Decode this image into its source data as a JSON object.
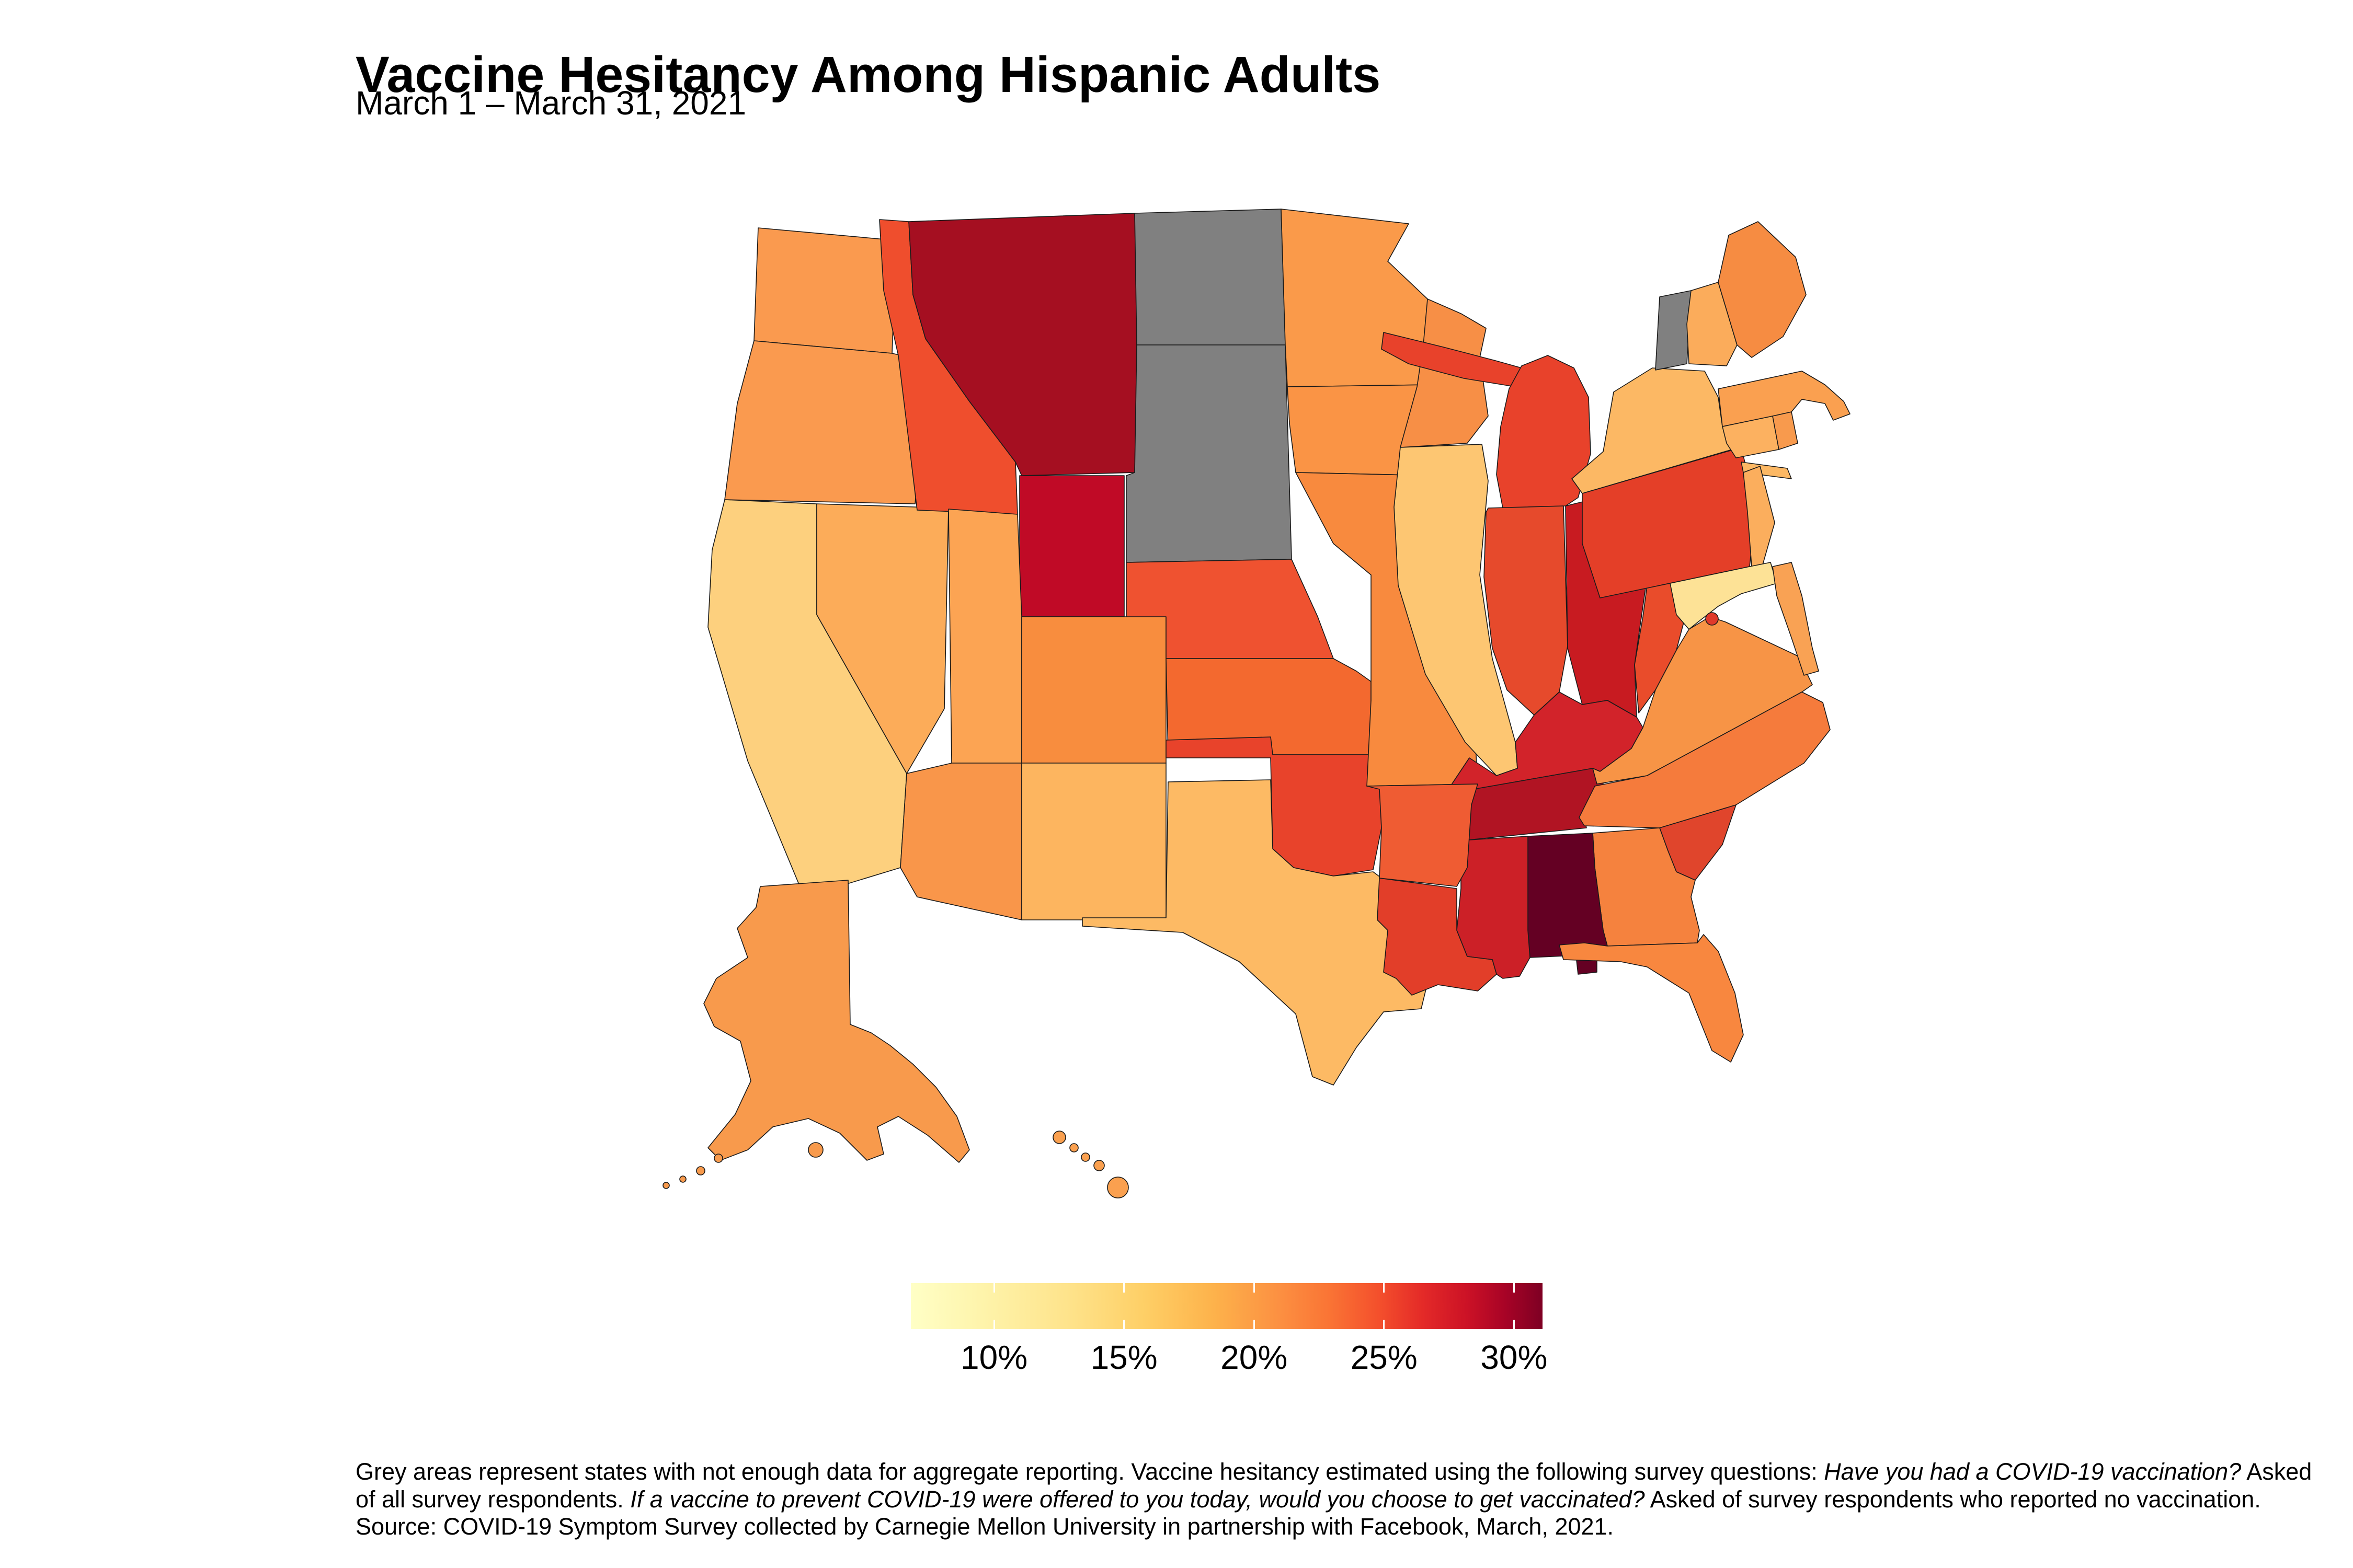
{
  "title": "Vaccine Hesitancy Among Hispanic Adults",
  "subtitle": "March 1 – March 31, 2021",
  "legend": {
    "tick_labels": [
      "10%",
      "15%",
      "20%",
      "25%",
      "30%"
    ],
    "tick_values": [
      10,
      15,
      20,
      25,
      30
    ],
    "domain": [
      6.8,
      31.1
    ],
    "gradient_css": "linear-gradient(to right,#FFFFC6 0%,#FEF3A9 12%,#FEE38B 25%,#FECF66 37%,#FDB24B 48%,#FC9142 58%,#FA7535 66%,#F4502C 74%,#E42A28 81%,#CC1226 88%,#A80326 94%,#7E0023 100%)"
  },
  "footnote_segments": [
    {
      "text": "Grey areas represent states with not enough data for aggregate reporting. Vaccine hesitancy estimated using the following survey questions: ",
      "italic": false
    },
    {
      "text": "Have you had a COVID-19 vaccination?",
      "italic": true
    },
    {
      "text": " Asked of all survey respondents. ",
      "italic": false
    },
    {
      "text": "If a vaccine to prevent COVID-19 were offered to you today, would you choose to get vaccinated?",
      "italic": true
    },
    {
      "text": " Asked of survey respondents who reported no vaccination. Source: COVID-19 Symptom Survey collected by Carnegie Mellon University in partnership with Facebook, March, 2021.",
      "italic": false
    }
  ],
  "map": {
    "background": "#FFFFFF",
    "no_data_color": "#808080",
    "border_color": "#1A1A1A",
    "states": [
      {
        "id": "WA",
        "name": "Washington",
        "color": "#FA9A4F",
        "polys": [
          "150,28 282,40 278,148 146,136"
        ]
      },
      {
        "id": "OR",
        "name": "Oregon",
        "color": "#FA9A4F",
        "polys": [
          "146,136 278,148 312,156 300,292 118,288 130,196"
        ]
      },
      {
        "id": "CA",
        "name": "California",
        "color": "#FDD07E",
        "polys": [
          "118,288 206,292 206,398 292,550 286,640 194,668 140,538 102,410 106,336"
        ]
      },
      {
        "id": "NV",
        "name": "Nevada",
        "color": "#FCAC59",
        "polys": [
          "206,292 332,296 328,488 292,550 206,398"
        ]
      },
      {
        "id": "ID",
        "name": "Idaho",
        "color": "#EF4E2D",
        "polys": [
          "266,20 294,22 298,92 310,134 352,194 396,252 398,302 302,298 284,150 270,88"
        ]
      },
      {
        "id": "MT",
        "name": "Montana",
        "color": "#A50F21",
        "polys": [
          "294,22 510,14 512,140 510,262 402,265 396,252 352,194 310,134 298,92"
        ]
      },
      {
        "id": "ND",
        "name": "North Dakota",
        "color": "#808080",
        "polys": [
          "510,14 650,10 654,140 512,140"
        ]
      },
      {
        "id": "SD",
        "name": "South Dakota",
        "color": "#808080",
        "polys": [
          "512,140 654,140 660,345 502,348 502,265 510,262"
        ]
      },
      {
        "id": "WY",
        "name": "Wyoming",
        "color": "#C00A26",
        "polys": [
          "400,265 500,265 500,400 400,400"
        ]
      },
      {
        "id": "UT",
        "name": "Utah",
        "color": "#FCA453",
        "polys": [
          "332,297 398,302 402,400 402,540 335,540"
        ]
      },
      {
        "id": "CO",
        "name": "Colorado",
        "color": "#F88D3E",
        "polys": [
          "402,400 540,400 540,540 402,540"
        ]
      },
      {
        "id": "AZ",
        "name": "Arizona",
        "color": "#F9964A",
        "polys": [
          "335,540 402,540 402,690 302,668 286,640 292,550"
        ]
      },
      {
        "id": "NM",
        "name": "New Mexico",
        "color": "#FDB55F",
        "polys": [
          "402,540 540,540 540,690 402,690"
        ]
      },
      {
        "id": "NE",
        "name": "Nebraska",
        "color": "#EF5230",
        "polys": [
          "502,348 660,345 685,400 700,440 540,440 540,400 502,400"
        ]
      },
      {
        "id": "KS",
        "name": "Kansas",
        "color": "#F3692F",
        "polys": [
          "540,440 700,440 722,452 736,462 736,532 542,532"
        ]
      },
      {
        "id": "OK",
        "name": "Oklahoma",
        "color": "#E8432B",
        "polys": [
          "540,518 640,515 642,532 736,532 744,548 746,602 738,642 700,648 662,640 642,622 640,535 540,535"
        ]
      },
      {
        "id": "TX",
        "name": "Texas",
        "color": "#FDBA64",
        "polys": [
          "542,558 640,556 642,622 662,640 700,648 738,644 746,650 776,658 790,700 792,742 784,775 748,778 722,812 700,848 680,840 664,780 610,730 556,702 460,696 460,688 540,688"
        ]
      },
      {
        "id": "MN",
        "name": "Minnesota",
        "color": "#FA9A4A",
        "polys": [
          "650,10 772,24 752,60 790,96 794,178 656,180 654,140"
        ]
      },
      {
        "id": "IA",
        "name": "Iowa",
        "color": "#FA9445",
        "polys": [
          "656,180 794,178 808,198 810,250 796,265 664,262 658,215"
        ]
      },
      {
        "id": "MO",
        "name": "Missouri",
        "color": "#F88A3E",
        "polys": [
          "664,262 796,265 814,298 810,365 832,450 838,560 732,562 736,480 736,360 700,330"
        ]
      },
      {
        "id": "WI",
        "name": "Wisconsin",
        "color": "#F78F46",
        "polys": [
          "790,96 822,110 846,124 840,152 848,208 828,234 764,238 780,180 786,140"
        ]
      },
      {
        "id": "IL",
        "name": "Illinois",
        "color": "#FDC672",
        "polys": [
          "764,238 842,235 848,270 840,360 852,440 874,520 876,545 856,552 826,520 788,455 762,370 758,295"
        ]
      },
      {
        "id": "MI",
        "name": "Michigan",
        "color": "#E8422B",
        "polys": [
          "748,128 805,142 855,155 880,162 874,180 825,172 772,158 746,144",
          "880,160 905,150 930,162 944,190 946,244 934,286 922,294 862,296 856,264 860,218 868,182"
        ]
      },
      {
        "id": "IN",
        "name": "Indiana",
        "color": "#E64A2C",
        "polys": [
          "848,296 920,294 924,428 916,472 892,494 866,470 852,430 844,362 846,300"
        ]
      },
      {
        "id": "OH",
        "name": "Ohio",
        "color": "#C81B21",
        "polys": [
          "922,294 988,278 1006,290 1000,362 988,446 990,496 962,480 938,484 924,430"
        ]
      },
      {
        "id": "KY",
        "name": "Kentucky",
        "color": "#D2232A",
        "polys": [
          "812,562 830,535 856,552 876,545 874,520 892,494 916,472 938,484 962,480 990,496 996,506 985,526 955,548 948,545 834,565"
        ]
      },
      {
        "id": "TN",
        "name": "Tennessee",
        "color": "#B11423",
        "polys": [
          "834,565 948,545 955,548 958,560 940,592 942,602 824,614 830,582"
        ]
      },
      {
        "id": "WV",
        "name": "West Virginia",
        "color": "#E94C2B",
        "polys": [
          "1000,370 1022,366 1038,394 1028,432 1008,470 992,492 988,446 996,400"
        ]
      },
      {
        "id": "VA",
        "name": "Virginia",
        "color": "#F79446",
        "polys": [
          "948,545 955,548 985,526 996,506 1008,470 1028,432 1040,412 1060,400 1075,405 1145,438 1158,465 1148,472 1000,552 952,560"
        ]
      },
      {
        "id": "NC",
        "name": "North Carolina",
        "color": "#F57B3C",
        "polys": [
          "935,592 950,562 1000,552 1148,472 1168,482 1175,508 1150,540 1085,580 1012,602 940,600"
        ]
      },
      {
        "id": "SC",
        "name": "South Carolina",
        "color": "#E0452C",
        "polys": [
          "1012,602 1085,580 1072,618 1046,652 1028,644 1020,624"
        ]
      },
      {
        "id": "GA",
        "name": "Georgia",
        "color": "#F5823E",
        "polys": [
          "948,607 1012,602 1020,624 1028,644 1046,652 1042,668 1050,700 1048,712 962,715 958,700 950,640"
        ]
      },
      {
        "id": "AL",
        "name": "Alabama",
        "color": "#640023",
        "polys": [
          "886,610 948,607 950,640 958,700 962,715 952,717 952,740 934,742 932,724 888,726 886,700"
        ]
      },
      {
        "id": "MS",
        "name": "Mississippi",
        "color": "#CC2027",
        "polys": [
          "822,614 886,610 886,700 888,726 878,744 862,746 856,742 852,728 828,725 818,700 822,660"
        ]
      },
      {
        "id": "LA",
        "name": "Louisiana",
        "color": "#E23E29",
        "polys": [
          "744,650 818,660 818,700 828,725 852,728 856,742 838,758 800,752 775,762 760,746 748,740 752,700 742,690"
        ]
      },
      {
        "id": "AR",
        "name": "Arkansas",
        "color": "#EF5C33",
        "polys": [
          "732,562 838,560 832,580 828,640 818,658 744,650 746,602 744,565"
        ]
      },
      {
        "id": "FL",
        "name": "Florida",
        "color": "#F8873F",
        "polys": [
          "962,715 1048,712 1054,704 1068,720 1084,760 1092,800 1080,826 1062,815 1040,760 1000,735 975,730 920,728 916,714 940,712"
        ]
      },
      {
        "id": "PA",
        "name": "Pennsylvania",
        "color": "#E43F28",
        "polys": [
          "938,282 1090,238 1104,295 1098,352 955,382 938,330"
        ]
      },
      {
        "id": "NY",
        "name": "New York",
        "color": "#FCB864",
        "polys": [
          "958,242 968,185 1005,162 1055,165 1068,190 1072,218 1088,238 938,282 928,268",
          "1090,252 1134,258 1138,268 1092,262"
        ]
      },
      {
        "id": "NJ",
        "name": "New Jersey",
        "color": "#FBAE5D",
        "polys": [
          "1092,262 1108,256 1122,310 1110,352 1100,352 1096,300"
        ]
      },
      {
        "id": "MD",
        "name": "Maryland",
        "color": "#FDE296",
        "polys": [
          "1022,368 1098,352 1118,348 1124,368 1090,378 1068,390 1050,404 1040,412 1028,398"
        ]
      },
      {
        "id": "DE",
        "name": "Delaware / Eastern Shore",
        "color": "#F9A254",
        "polys": [
          "1120,352 1138,348 1148,380 1158,430 1164,452 1150,456 1138,420 1124,380"
        ]
      },
      {
        "id": "CT",
        "name": "Connecticut",
        "color": "#FCB160",
        "polys": [
          "1072,218 1120,208 1126,240 1085,248 1076,234"
        ]
      },
      {
        "id": "RI",
        "name": "Rhode Island",
        "color": "#F89A4D",
        "polys": [
          "1120,208 1138,204 1144,234 1126,240"
        ]
      },
      {
        "id": "MA",
        "name": "Massachusetts",
        "color": "#FAA050",
        "polys": [
          "1068,182 1148,165 1170,178 1188,194 1194,206 1178,212 1170,196 1148,192 1138,204 1120,208 1072,218"
        ]
      },
      {
        "id": "VT",
        "name": "Vermont",
        "color": "#808080",
        "polys": [
          "1012,94 1042,88 1038,158 1008,164"
        ]
      },
      {
        "id": "NH",
        "name": "New Hampshire",
        "color": "#FBAC5B",
        "polys": [
          "1042,88 1068,80 1086,140 1076,160 1040,158 1038,120"
        ]
      },
      {
        "id": "ME",
        "name": "Maine",
        "color": "#F68C42",
        "polys": [
          "1068,80 1078,35 1106,22 1142,56 1152,92 1130,132 1100,152 1086,140"
        ]
      },
      {
        "id": "AK",
        "name": "Alaska",
        "color": "#F89A4C",
        "polys": [
          "152,658 236,652 238,790 258,798 276,810 298,828 320,850 340,878 352,910 342,922 312,896 284,878 264,888 270,914 254,920 228,894 198,880 164,888 140,910 114,920 102,908 128,876 143,844 133,806 108,792 98,770 110,746 140,726 130,698 148,678"
        ],
        "circles": [
          [
            205,
            910,
            7
          ],
          [
            112,
            918,
            4
          ],
          [
            95,
            930,
            4
          ],
          [
            78,
            938,
            3
          ],
          [
            62,
            944,
            3
          ]
        ]
      },
      {
        "id": "HI",
        "name": "Hawaii",
        "color": "#FAA04F",
        "polys": [],
        "circles": [
          [
            438,
            898,
            6
          ],
          [
            452,
            908,
            4
          ],
          [
            463,
            917,
            4
          ],
          [
            476,
            925,
            5
          ],
          [
            494,
            946,
            10
          ]
        ]
      },
      {
        "id": "DC",
        "name": "District of Columbia",
        "color": "#E0392B",
        "polys": [],
        "circles": [
          [
            1062,
            402,
            6
          ]
        ]
      }
    ]
  },
  "chart_data": {
    "type": "heatmap",
    "subtype": "us-state-choropleth",
    "title": "Vaccine Hesitancy Among Hispanic Adults",
    "subtitle": "March 1 – March 31, 2021",
    "value_label": "Estimated vaccine hesitancy (%)",
    "colorbar_range_pct": [
      6.8,
      31.1
    ],
    "colorbar_ticks_pct": [
      10,
      15,
      20,
      25,
      30
    ],
    "colormap": "YlOrRd (light yellow = low, dark red = high)",
    "no_data_states": [
      "ND",
      "SD",
      "VT"
    ],
    "categories": [
      "AL",
      "AK",
      "AZ",
      "AR",
      "CA",
      "CO",
      "CT",
      "DE",
      "DC",
      "FL",
      "GA",
      "HI",
      "ID",
      "IL",
      "IN",
      "IA",
      "KS",
      "KY",
      "LA",
      "ME",
      "MD",
      "MA",
      "MI",
      "MN",
      "MS",
      "MO",
      "MT",
      "NE",
      "NV",
      "NH",
      "NJ",
      "NM",
      "NY",
      "NC",
      "ND",
      "OH",
      "OK",
      "OR",
      "PA",
      "RI",
      "SC",
      "SD",
      "TN",
      "TX",
      "UT",
      "VT",
      "VA",
      "WA",
      "WV",
      "WI",
      "WY"
    ],
    "values": [
      31,
      17.5,
      18.5,
      22,
      12,
      19.5,
      15,
      17,
      24.5,
      19,
      20,
      16,
      23.5,
      12.5,
      24,
      17,
      21.5,
      25.5,
      24.5,
      18.5,
      10,
      17,
      24,
      17.5,
      26,
      19.5,
      29,
      23,
      15.5,
      15.5,
      15.5,
      15,
      14.5,
      20.5,
      null,
      26.5,
      24.5,
      17.5,
      24.5,
      17.5,
      24,
      null,
      28.5,
      14,
      16,
      null,
      18,
      17.5,
      24,
      18,
      28
    ],
    "values_note": "Values estimated from fill colors against the 10–30% colorbar; null = grey (not enough data)."
  }
}
